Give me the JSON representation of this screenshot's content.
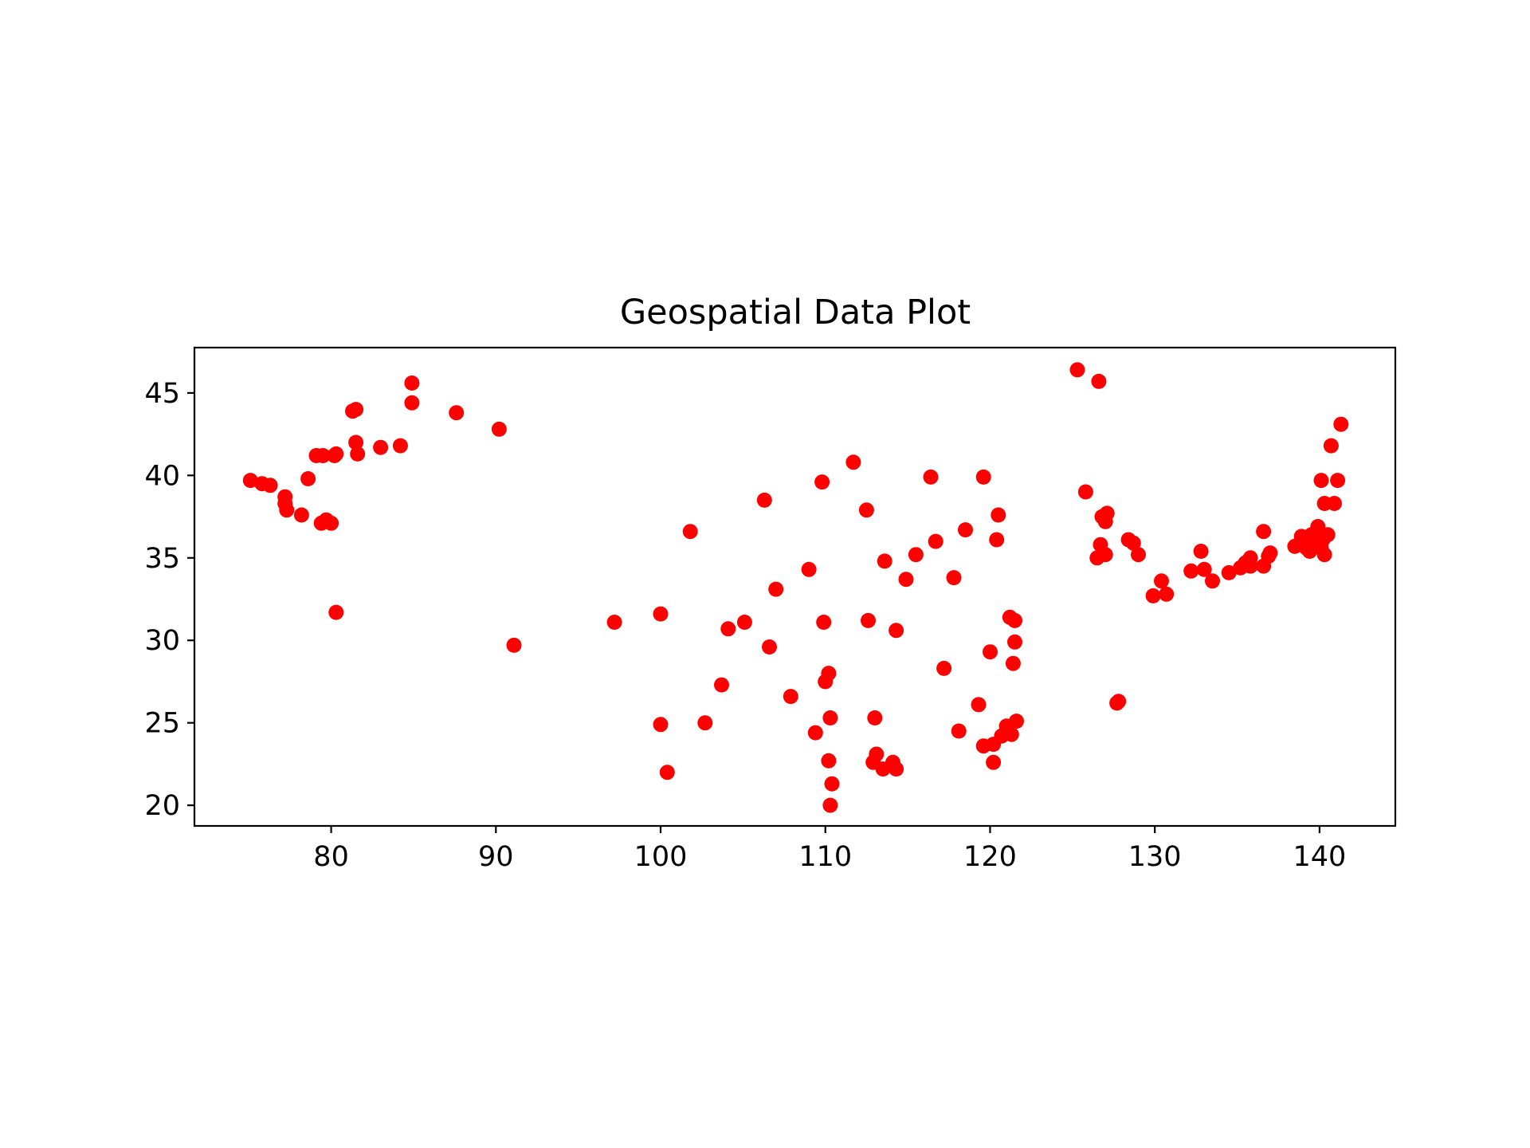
{
  "chart_data": {
    "type": "scatter",
    "title": "Geospatial Data Plot",
    "xlabel": "",
    "ylabel": "",
    "xlim": [
      71.7,
      144.6
    ],
    "ylim": [
      18.75,
      47.75
    ],
    "x_ticks": [
      80,
      90,
      100,
      110,
      120,
      130,
      140
    ],
    "y_ticks": [
      20,
      25,
      30,
      35,
      40,
      45
    ],
    "grid": false,
    "marker_color": "#ff0000",
    "series": [
      {
        "points": [
          [
            75.1,
            39.7
          ],
          [
            75.8,
            39.5
          ],
          [
            76.3,
            39.4
          ],
          [
            77.2,
            38.7
          ],
          [
            77.2,
            38.3
          ],
          [
            77.3,
            37.9
          ],
          [
            78.2,
            37.6
          ],
          [
            78.6,
            39.8
          ],
          [
            79.1,
            41.2
          ],
          [
            79.5,
            41.2
          ],
          [
            80.2,
            41.2
          ],
          [
            80.3,
            41.3
          ],
          [
            79.4,
            37.1
          ],
          [
            79.7,
            37.3
          ],
          [
            80.0,
            37.1
          ],
          [
            80.3,
            31.7
          ],
          [
            81.3,
            43.9
          ],
          [
            81.5,
            44.0
          ],
          [
            81.5,
            42.0
          ],
          [
            81.6,
            41.3
          ],
          [
            83.0,
            41.7
          ],
          [
            84.2,
            41.8
          ],
          [
            84.9,
            45.6
          ],
          [
            84.9,
            44.4
          ],
          [
            87.6,
            43.8
          ],
          [
            90.2,
            42.8
          ],
          [
            91.1,
            29.7
          ],
          [
            97.2,
            31.1
          ],
          [
            100.0,
            31.6
          ],
          [
            100.0,
            24.9
          ],
          [
            100.4,
            22.0
          ],
          [
            101.8,
            36.6
          ],
          [
            102.7,
            25.0
          ],
          [
            103.7,
            27.3
          ],
          [
            104.1,
            30.7
          ],
          [
            105.1,
            31.1
          ],
          [
            106.3,
            38.5
          ],
          [
            106.6,
            29.6
          ],
          [
            107.0,
            33.1
          ],
          [
            107.9,
            26.6
          ],
          [
            109.0,
            34.3
          ],
          [
            109.4,
            24.4
          ],
          [
            109.8,
            39.6
          ],
          [
            109.9,
            31.1
          ],
          [
            110.0,
            27.5
          ],
          [
            110.2,
            28.0
          ],
          [
            110.3,
            25.3
          ],
          [
            110.2,
            22.7
          ],
          [
            110.4,
            21.3
          ],
          [
            110.3,
            20.0
          ],
          [
            111.7,
            40.8
          ],
          [
            112.5,
            37.9
          ],
          [
            112.6,
            31.2
          ],
          [
            113.0,
            25.3
          ],
          [
            113.1,
            23.1
          ],
          [
            112.9,
            22.6
          ],
          [
            113.5,
            22.2
          ],
          [
            113.6,
            34.8
          ],
          [
            114.1,
            22.6
          ],
          [
            114.3,
            30.6
          ],
          [
            114.3,
            22.2
          ],
          [
            114.9,
            33.7
          ],
          [
            115.5,
            35.2
          ],
          [
            116.4,
            39.9
          ],
          [
            116.7,
            36.0
          ],
          [
            117.2,
            28.3
          ],
          [
            117.8,
            33.8
          ],
          [
            118.1,
            24.5
          ],
          [
            118.5,
            36.7
          ],
          [
            119.3,
            26.1
          ],
          [
            119.6,
            39.9
          ],
          [
            119.6,
            23.6
          ],
          [
            120.0,
            29.3
          ],
          [
            120.2,
            23.7
          ],
          [
            120.2,
            22.6
          ],
          [
            120.4,
            36.1
          ],
          [
            120.5,
            37.6
          ],
          [
            120.7,
            24.2
          ],
          [
            121.0,
            24.8
          ],
          [
            121.3,
            24.3
          ],
          [
            121.2,
            31.4
          ],
          [
            121.5,
            31.2
          ],
          [
            121.4,
            28.6
          ],
          [
            121.5,
            29.9
          ],
          [
            121.6,
            25.1
          ],
          [
            125.3,
            46.4
          ],
          [
            125.8,
            39.0
          ],
          [
            126.6,
            45.7
          ],
          [
            126.5,
            35.0
          ],
          [
            126.7,
            35.8
          ],
          [
            126.8,
            37.5
          ],
          [
            127.0,
            35.2
          ],
          [
            127.1,
            37.7
          ],
          [
            127.0,
            37.2
          ],
          [
            127.7,
            26.2
          ],
          [
            127.8,
            26.3
          ],
          [
            128.4,
            36.1
          ],
          [
            128.7,
            35.9
          ],
          [
            129.0,
            35.2
          ],
          [
            129.9,
            32.7
          ],
          [
            130.4,
            33.6
          ],
          [
            130.7,
            32.8
          ],
          [
            132.2,
            34.2
          ],
          [
            132.8,
            35.4
          ],
          [
            133.0,
            34.3
          ],
          [
            133.5,
            33.6
          ],
          [
            134.5,
            34.1
          ],
          [
            135.2,
            34.4
          ],
          [
            135.5,
            34.7
          ],
          [
            135.8,
            35.0
          ],
          [
            135.8,
            34.5
          ],
          [
            136.6,
            34.5
          ],
          [
            136.6,
            36.6
          ],
          [
            136.9,
            35.1
          ],
          [
            137.0,
            35.3
          ],
          [
            138.5,
            35.7
          ],
          [
            138.9,
            36.3
          ],
          [
            139.2,
            35.6
          ],
          [
            139.4,
            35.4
          ],
          [
            139.5,
            36.4
          ],
          [
            139.6,
            35.7
          ],
          [
            139.7,
            35.9
          ],
          [
            139.9,
            36.9
          ],
          [
            140.0,
            35.7
          ],
          [
            140.1,
            39.7
          ],
          [
            140.1,
            35.6
          ],
          [
            140.2,
            36.1
          ],
          [
            140.3,
            38.3
          ],
          [
            140.3,
            35.2
          ],
          [
            140.5,
            36.4
          ],
          [
            140.7,
            41.8
          ],
          [
            140.9,
            38.3
          ],
          [
            141.1,
            39.7
          ],
          [
            141.3,
            43.1
          ]
        ]
      }
    ]
  }
}
